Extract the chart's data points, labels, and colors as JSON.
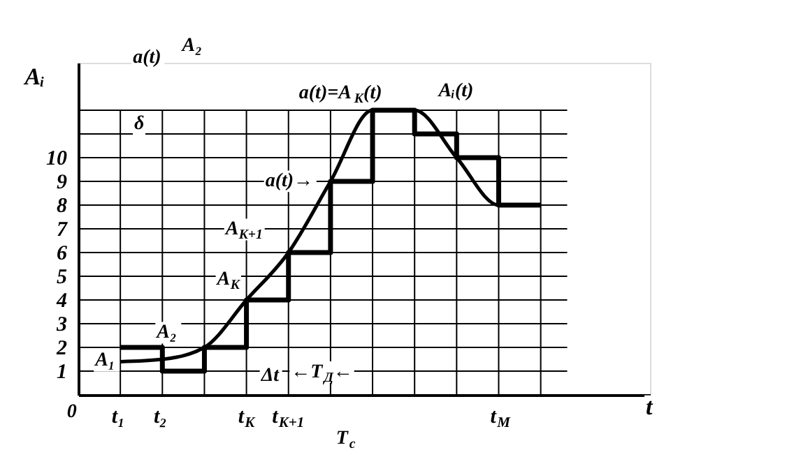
{
  "chart_data": {
    "type": "line",
    "ylabel": "Aᵢ",
    "xlabel": "t",
    "grid": true,
    "categories": [
      "t₁",
      "t₂",
      null,
      "t$_{K}$",
      "t$_{K+1}$",
      null,
      null,
      null,
      null,
      "t$_{M}$",
      null
    ],
    "ylim": [
      0,
      14
    ],
    "yticks": [
      1,
      2,
      3,
      4,
      5,
      6,
      7,
      8,
      9,
      10,
      {
        "value": 11,
        "label": null
      },
      {
        "value": 12,
        "label": null
      }
    ],
    "series": [
      {
        "type": "step",
        "color": "#000000",
        "values": [
          2,
          1,
          2,
          4,
          6,
          9,
          12,
          11,
          10,
          8,
          8
        ]
      },
      {
        "color": "#000000",
        "values": [
          1.4,
          1.5,
          2,
          4,
          6,
          9,
          12,
          12,
          10,
          8,
          8
        ]
      }
    ],
    "annotations": [
      {
        "text": "A₁",
        "x": "t₁",
        "y": 1.4
      },
      {
        "text": "A₂",
        "x": "t₂",
        "y": 2
      },
      {
        "text": "A$_{K}$",
        "x": "t$_{K}$",
        "y": 4
      },
      {
        "text": "A$_{K+1}$",
        "x": "t$_{K+1}$",
        "y": 6
      },
      "a(t)→",
      "a(t)=A$_{K}$(t)",
      "Aᵢ(t)",
      "a(t)",
      "A₂",
      "δ",
      "Δt",
      "←T$_{Д}$←",
      "T$_{c}$",
      "0"
    ]
  }
}
